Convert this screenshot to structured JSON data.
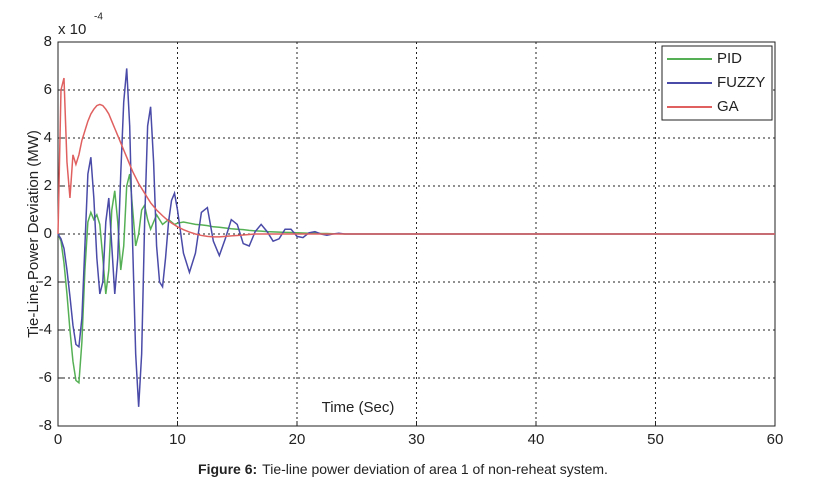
{
  "chart_data": {
    "type": "line",
    "y_multiplier": "x 10",
    "y_multiplier_exponent": "-4",
    "ylabel": "Tie-Line,Power Deviation (MW)",
    "xlabel": "Time (Sec)",
    "caption_label": "Figure 6:",
    "caption": "Tie-line power deviation of area 1 of non-reheat system.",
    "xlim": [
      0,
      60
    ],
    "xticks": [
      0,
      10,
      20,
      30,
      40,
      50,
      60
    ],
    "ylim": [
      -8,
      8
    ],
    "yticks": [
      -8,
      -6,
      -4,
      -2,
      0,
      2,
      4,
      6,
      8
    ],
    "grid": true,
    "legend": "upper right",
    "x": [
      0,
      0.25,
      0.5,
      0.75,
      1,
      1.25,
      1.5,
      1.75,
      2,
      2.25,
      2.5,
      2.75,
      3,
      3.25,
      3.5,
      3.75,
      4,
      4.25,
      4.5,
      4.75,
      5,
      5.25,
      5.5,
      5.75,
      6,
      6.25,
      6.5,
      6.75,
      7,
      7.25,
      7.5,
      7.75,
      8,
      8.25,
      8.5,
      8.75,
      9,
      9.25,
      9.5,
      9.75,
      10,
      10.5,
      11,
      11.5,
      12,
      12.5,
      13,
      13.5,
      14,
      14.5,
      15,
      15.5,
      16,
      16.5,
      17,
      17.5,
      18,
      18.5,
      19,
      19.5,
      20,
      20.5,
      21,
      21.5,
      22,
      22.5,
      23,
      23.5,
      24,
      30,
      60
    ],
    "series": [
      {
        "name": "PID",
        "color": "#55b055",
        "values": [
          0,
          -0.3,
          -1.2,
          -2.5,
          -4.0,
          -5.3,
          -6.1,
          -6.2,
          -4.5,
          -1.5,
          0.5,
          0.9,
          0.6,
          0.8,
          0.4,
          -1.0,
          -2.5,
          -1.5,
          1.0,
          1.8,
          0.5,
          -1.5,
          -0.5,
          2.0,
          2.5,
          1.0,
          -0.5,
          0,
          1.0,
          1.2,
          0.6,
          0.2,
          0.5,
          0.8,
          0.6,
          0.4,
          0.5,
          0.6,
          0.5,
          0.4,
          0.45,
          0.5,
          0.45,
          0.4,
          0.38,
          0.35,
          0.3,
          0.28,
          0.25,
          0.22,
          0.2,
          0.18,
          0.15,
          0.13,
          0.12,
          0.1,
          0.09,
          0.08,
          0.07,
          0.06,
          0.05,
          0.04,
          0.03,
          0.03,
          0.02,
          0.02,
          0.01,
          0.01,
          0,
          0,
          0
        ]
      },
      {
        "name": "FUZZY",
        "color": "#4a4aa8",
        "values": [
          0,
          -0.2,
          -0.6,
          -1.5,
          -2.6,
          -3.8,
          -4.6,
          -4.7,
          -3.5,
          -0.5,
          2.5,
          3.2,
          1.5,
          -1.0,
          -2.5,
          -2.0,
          0.5,
          1.5,
          -0.5,
          -2.5,
          -1.0,
          2.5,
          5.5,
          6.9,
          4.5,
          -0.5,
          -5.0,
          -7.2,
          -5.0,
          0.5,
          4.5,
          5.3,
          3.0,
          -0.5,
          -2.0,
          -2.2,
          -1.0,
          0.5,
          1.4,
          1.7,
          1.0,
          -0.8,
          -1.6,
          -0.8,
          0.9,
          1.1,
          -0.3,
          -0.9,
          -0.2,
          0.6,
          0.4,
          -0.4,
          -0.5,
          0.1,
          0.4,
          0.1,
          -0.3,
          -0.2,
          0.2,
          0.2,
          -0.1,
          -0.15,
          0.05,
          0.1,
          0,
          -0.05,
          0,
          0.03,
          0,
          0,
          0
        ]
      },
      {
        "name": "GA",
        "color": "#e06060",
        "values": [
          0,
          6,
          6.5,
          3,
          1.5,
          3.3,
          2.9,
          3.3,
          3.9,
          4.3,
          4.7,
          5.0,
          5.2,
          5.35,
          5.4,
          5.35,
          5.2,
          5.0,
          4.7,
          4.4,
          4.1,
          3.8,
          3.5,
          3.2,
          2.9,
          2.6,
          2.35,
          2.1,
          1.9,
          1.7,
          1.5,
          1.3,
          1.15,
          1.0,
          0.88,
          0.76,
          0.65,
          0.55,
          0.46,
          0.38,
          0.3,
          0.18,
          0.08,
          0,
          -0.06,
          -0.1,
          -0.12,
          -0.12,
          -0.1,
          -0.08,
          -0.06,
          -0.04,
          -0.02,
          0,
          0,
          0,
          0,
          0,
          0,
          0,
          0,
          0,
          0,
          0,
          0,
          0,
          0,
          0,
          0,
          0,
          0
        ]
      }
    ]
  }
}
